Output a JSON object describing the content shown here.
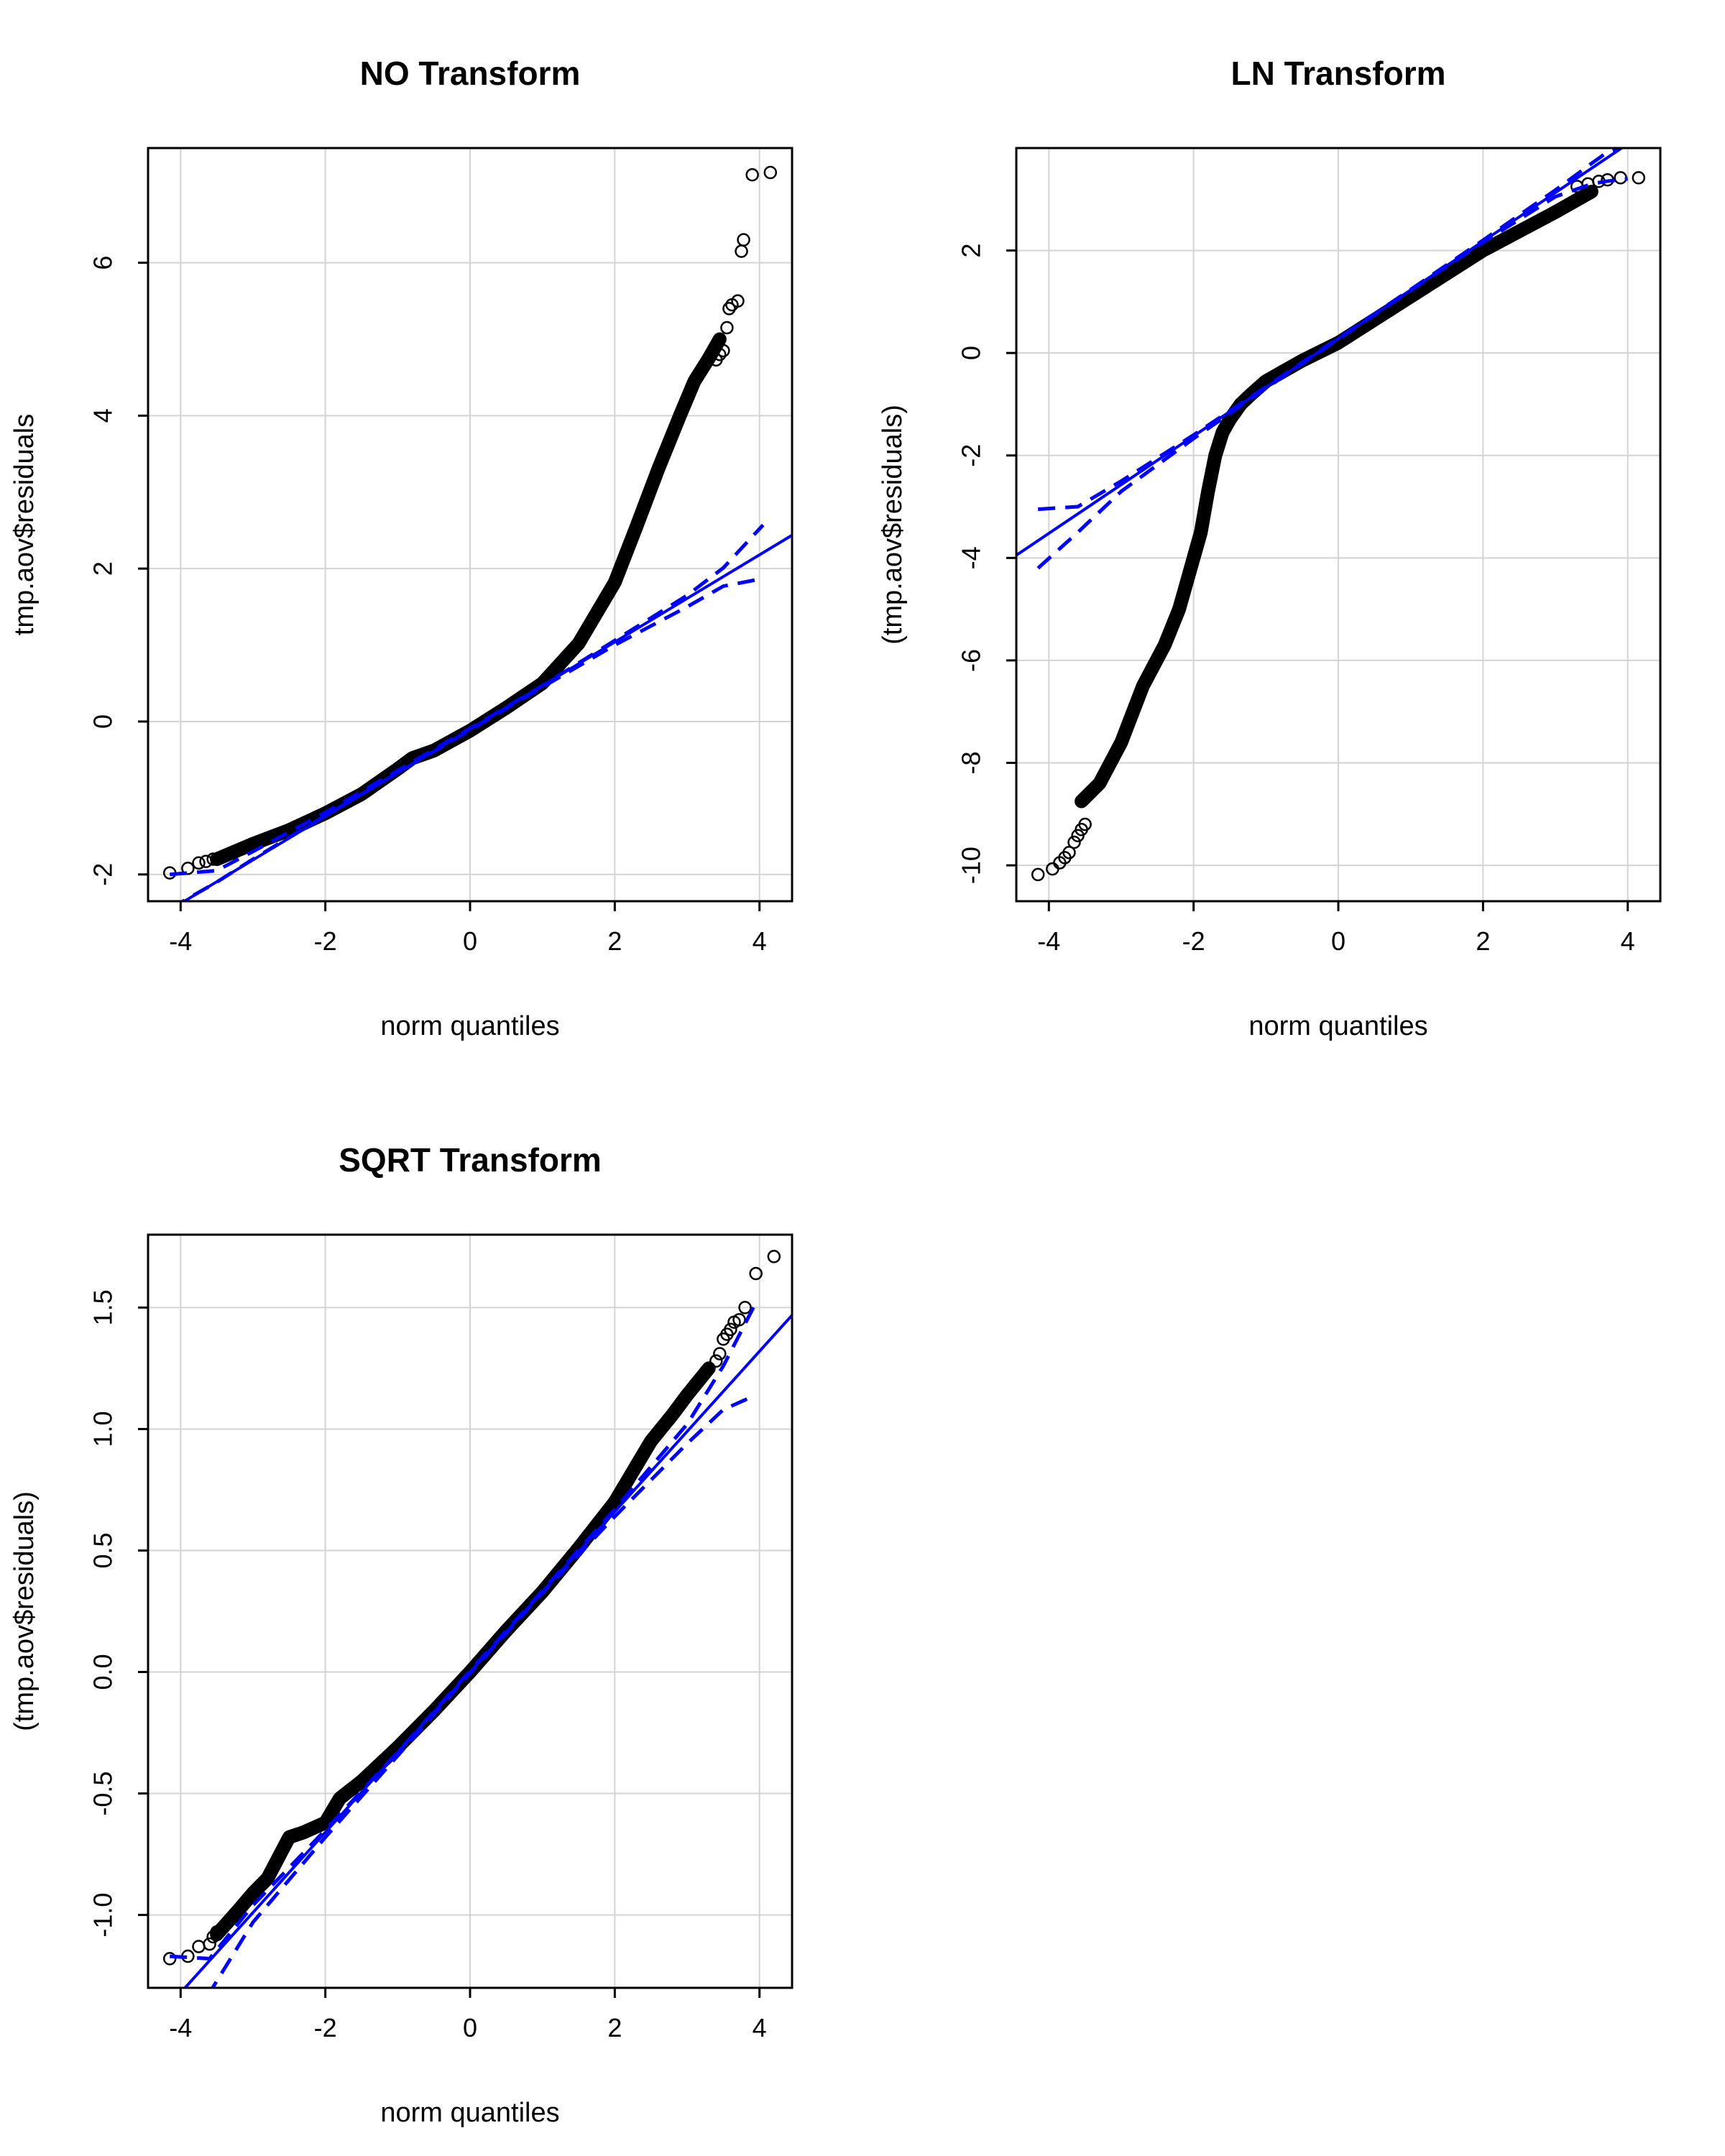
{
  "colors": {
    "line": "#0000ff",
    "points": "#000000",
    "grid": "#d3d3d3",
    "box": "#000000"
  },
  "chart_data": [
    {
      "type": "scatter",
      "title": "NO Transform",
      "xlabel": "norm quantiles",
      "ylabel": "tmp.aov$residuals",
      "xlim": [
        -4.45,
        4.45
      ],
      "ylim": [
        -2.35,
        7.5
      ],
      "xticks": [
        -4,
        -2,
        0,
        2,
        4
      ],
      "yticks": [
        -2,
        0,
        2,
        4,
        6
      ],
      "xtick_labels": [
        "-4",
        "-2",
        "0",
        "2",
        "4"
      ],
      "ytick_labels": [
        "-2",
        "0",
        "2",
        "4",
        "6"
      ],
      "grid": true,
      "reference_line": {
        "intercept": -0.1,
        "slope": 0.57
      },
      "envelope": {
        "x": [
          -4.15,
          -3.5,
          -3.0,
          -2.0,
          -1.0,
          0.0,
          1.0,
          2.0,
          3.0,
          3.5,
          4.05
        ],
        "upper": [
          -2.0,
          -1.95,
          -1.7,
          -1.19,
          -0.64,
          -0.09,
          0.47,
          1.06,
          1.65,
          2.01,
          2.57
        ],
        "lower": [
          -2.45,
          -2.1,
          -1.8,
          -1.23,
          -0.67,
          -0.11,
          0.45,
          1.0,
          1.5,
          1.77,
          1.87
        ]
      },
      "curve": {
        "x": [
          -3.5,
          -3.0,
          -2.5,
          -2.0,
          -1.5,
          -1.0,
          -0.8,
          -0.5,
          0.0,
          0.5,
          1.0,
          1.5,
          2.0,
          2.3,
          2.6,
          2.9,
          3.1,
          3.3,
          3.45
        ],
        "y": [
          -1.8,
          -1.6,
          -1.42,
          -1.2,
          -0.95,
          -0.62,
          -0.48,
          -0.38,
          -0.12,
          0.18,
          0.5,
          1.02,
          1.82,
          2.55,
          3.3,
          4.0,
          4.45,
          4.75,
          5.0
        ]
      },
      "points": {
        "x": [
          -4.15,
          -3.9,
          -3.75,
          -3.65,
          -3.55,
          -3.45,
          -3.38,
          3.4,
          3.45,
          3.5,
          3.55,
          3.58,
          3.62,
          3.7,
          3.75,
          3.78,
          3.9,
          4.15
        ],
        "y": [
          -1.98,
          -1.92,
          -1.85,
          -1.83,
          -1.8,
          -1.78,
          -1.75,
          4.73,
          4.8,
          4.85,
          5.15,
          5.4,
          5.45,
          5.5,
          6.15,
          6.3,
          7.15,
          7.18
        ]
      }
    },
    {
      "type": "scatter",
      "title": "LN Transform",
      "xlabel": "norm quantiles",
      "ylabel": "(tmp.aov$residuals)",
      "xlim": [
        -4.45,
        4.45
      ],
      "ylim": [
        -10.7,
        4.0
      ],
      "xticks": [
        -4,
        -2,
        0,
        2,
        4
      ],
      "yticks": [
        -10,
        -8,
        -6,
        -4,
        -2,
        0,
        2
      ],
      "xtick_labels": [
        "-4",
        "-2",
        "0",
        "2",
        "4"
      ],
      "ytick_labels": [
        "-10",
        "-8",
        "-6",
        "-4",
        "-2",
        "0",
        "2"
      ],
      "grid": true,
      "reference_line": {
        "intercept": 0.28,
        "slope": 0.95
      },
      "envelope": {
        "x": [
          -4.15,
          -3.6,
          -3.0,
          -2.0,
          -1.0,
          0.0,
          1.0,
          2.0,
          3.0,
          3.5,
          3.7,
          4.0
        ],
        "upper": [
          -3.05,
          -3.0,
          -2.5,
          -1.6,
          -0.66,
          0.29,
          1.24,
          2.2,
          3.18,
          3.7,
          3.9,
          4.05
        ],
        "lower": [
          -4.2,
          -3.5,
          -2.7,
          -1.67,
          -0.69,
          0.27,
          1.22,
          2.16,
          3.05,
          3.3,
          3.35,
          3.4
        ]
      },
      "curve": {
        "x": [
          -3.55,
          -3.3,
          -3.0,
          -2.7,
          -2.4,
          -2.2,
          -2.0,
          -1.9,
          -1.8,
          -1.7,
          -1.6,
          -1.5,
          -1.35,
          -1.2,
          -1.0,
          -0.5,
          0.0,
          1.0,
          2.0,
          3.0,
          3.5
        ],
        "y": [
          -8.75,
          -8.4,
          -7.6,
          -6.5,
          -5.7,
          -5.0,
          -4.0,
          -3.5,
          -2.7,
          -2.0,
          -1.55,
          -1.3,
          -1.0,
          -0.8,
          -0.55,
          -0.15,
          0.2,
          1.1,
          2.0,
          2.75,
          3.15
        ]
      },
      "points": {
        "x": [
          -4.15,
          -3.95,
          -3.85,
          -3.78,
          -3.72,
          -3.65,
          -3.6,
          -3.55,
          -3.5,
          3.3,
          3.45,
          3.6,
          3.72,
          3.9,
          4.15
        ],
        "y": [
          -10.18,
          -10.07,
          -9.95,
          -9.85,
          -9.75,
          -9.55,
          -9.42,
          -9.3,
          -9.2,
          3.25,
          3.3,
          3.35,
          3.38,
          3.42,
          3.42
        ]
      }
    },
    {
      "type": "scatter",
      "title": "SQRT Transform",
      "xlabel": "norm quantiles",
      "ylabel": "(tmp.aov$residuals)",
      "xlim": [
        -4.45,
        4.45
      ],
      "ylim": [
        -1.3,
        1.8
      ],
      "xticks": [
        -4,
        -2,
        0,
        2,
        4
      ],
      "yticks": [
        -1.0,
        -0.5,
        0.0,
        0.5,
        1.0,
        1.5
      ],
      "xtick_labels": [
        "-4",
        "-2",
        "0",
        "2",
        "4"
      ],
      "ytick_labels": [
        "-1.0",
        "-0.5",
        "0.0",
        "0.5",
        "1.0",
        "1.5"
      ],
      "grid": true,
      "reference_line": {
        "intercept": 0.0,
        "slope": 0.33
      },
      "envelope": {
        "x": [
          -4.15,
          -3.6,
          -3.0,
          -2.0,
          -1.0,
          0.0,
          1.0,
          2.0,
          3.0,
          3.5,
          3.95
        ],
        "upper": [
          -1.17,
          -1.18,
          -0.96,
          -0.65,
          -0.33,
          0.005,
          0.335,
          0.67,
          1.02,
          1.26,
          1.52
        ],
        "lower": [
          -1.5,
          -1.32,
          -1.03,
          -0.68,
          -0.345,
          -0.005,
          0.325,
          0.64,
          0.94,
          1.08,
          1.14
        ]
      },
      "curve": {
        "x": [
          -3.5,
          -3.2,
          -3.0,
          -2.8,
          -2.5,
          -2.3,
          -2.0,
          -1.8,
          -1.5,
          -1.0,
          -0.5,
          0.0,
          0.5,
          1.0,
          1.5,
          2.0,
          2.3,
          2.5,
          2.8,
          3.0,
          3.3
        ],
        "y": [
          -1.08,
          -0.98,
          -0.91,
          -0.85,
          -0.68,
          -0.66,
          -0.62,
          -0.52,
          -0.45,
          -0.31,
          -0.16,
          0.0,
          0.17,
          0.33,
          0.51,
          0.7,
          0.85,
          0.95,
          1.06,
          1.14,
          1.25
        ]
      },
      "points": {
        "x": [
          -4.15,
          -3.9,
          -3.75,
          -3.6,
          -3.55,
          -3.5,
          3.4,
          3.45,
          3.5,
          3.55,
          3.6,
          3.65,
          3.72,
          3.8,
          3.95,
          4.2
        ],
        "y": [
          -1.18,
          -1.17,
          -1.13,
          -1.12,
          -1.09,
          -1.07,
          1.28,
          1.31,
          1.37,
          1.39,
          1.41,
          1.44,
          1.45,
          1.5,
          1.64,
          1.71
        ]
      }
    }
  ]
}
